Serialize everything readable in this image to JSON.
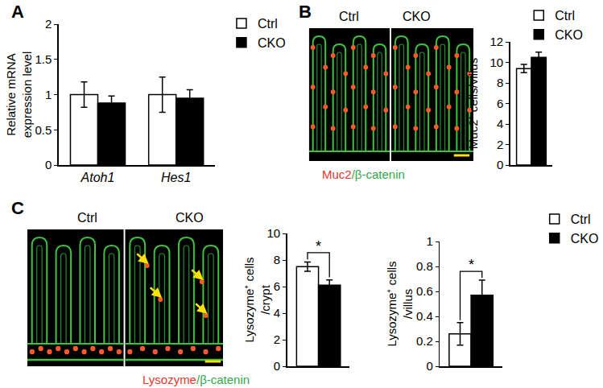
{
  "chart_data": [
    {
      "type": "bar",
      "ylabel": "Relative mRNA\nexpression level",
      "categories": [
        "Atoh1",
        "Hes1"
      ],
      "series": [
        {
          "name": "Ctrl",
          "color": "#ffffff",
          "values": [
            1.0,
            1.0
          ],
          "errors": [
            0.18,
            0.25
          ]
        },
        {
          "name": "CKO",
          "color": "#000000",
          "values": [
            0.88,
            0.95
          ],
          "errors": [
            0.1,
            0.12
          ]
        }
      ],
      "ylim": [
        0,
        2
      ],
      "yticks": [
        0,
        0.5,
        1,
        1.5,
        2
      ],
      "grid": false,
      "legend": "top right"
    },
    {
      "type": "bar",
      "ylabel": "Muc2⁺ cells/villus",
      "categories": [
        null
      ],
      "series": [
        {
          "name": "Ctrl",
          "color": "#ffffff",
          "values": [
            9.4
          ],
          "errors": [
            0.4
          ]
        },
        {
          "name": "CKO",
          "color": "#000000",
          "values": [
            10.5
          ],
          "errors": [
            0.5
          ]
        }
      ],
      "ylim": [
        0,
        12
      ],
      "yticks": [
        0,
        2,
        4,
        6,
        8,
        10,
        12
      ],
      "grid": false,
      "legend": "top right"
    },
    {
      "type": "bar",
      "ylabel": "Lysozyme⁺ cells\n/crypt",
      "categories": [
        null
      ],
      "series": [
        {
          "name": "Ctrl",
          "color": "#ffffff",
          "values": [
            7.5
          ],
          "errors": [
            0.35
          ]
        },
        {
          "name": "CKO",
          "color": "#000000",
          "values": [
            6.1
          ],
          "errors": [
            0.4
          ]
        }
      ],
      "ylim": [
        0,
        10
      ],
      "yticks": [
        0,
        2,
        4,
        6,
        8,
        10
      ],
      "grid": false,
      "significance": "*"
    },
    {
      "type": "bar",
      "ylabel": "Lysozyme⁺ cells\n/villus",
      "categories": [
        null
      ],
      "series": [
        {
          "name": "Ctrl",
          "color": "#ffffff",
          "values": [
            0.26
          ],
          "errors": [
            0.09
          ]
        },
        {
          "name": "CKO",
          "color": "#000000",
          "values": [
            0.57
          ],
          "errors": [
            0.12
          ]
        }
      ],
      "ylim": [
        0,
        1
      ],
      "yticks": [
        0,
        0.2,
        0.4,
        0.6,
        0.8,
        1
      ],
      "grid": false,
      "significance": "*",
      "legend": "top right"
    }
  ],
  "figure": {
    "panels": [
      "A",
      "B",
      "C"
    ],
    "images": [
      {
        "labels": [
          "Ctrl",
          "CKO"
        ],
        "stain": [
          {
            "text": "Muc2",
            "color": "#e8362b"
          },
          {
            "text": "/β-catenin",
            "color": "#2fa84a"
          }
        ]
      },
      {
        "labels": [
          "Ctrl",
          "CKO"
        ],
        "stain": [
          {
            "text": "Lysozyme",
            "color": "#e8362b"
          },
          {
            "text": "/β-catenin",
            "color": "#2fa84a"
          }
        ]
      }
    ]
  }
}
